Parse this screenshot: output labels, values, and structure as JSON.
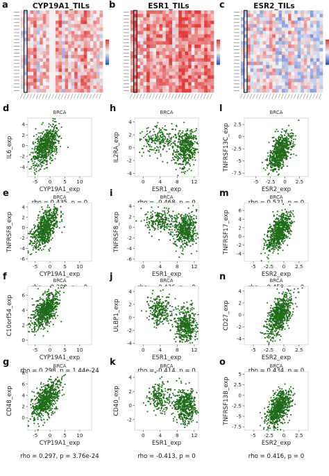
{
  "heatmaps": [
    {
      "label": "a",
      "title": "CYP19A1_TILs"
    },
    {
      "label": "b",
      "title": "ESR1_TILs"
    },
    {
      "label": "c",
      "title": "ESR2_TILs"
    }
  ],
  "colors": {
    "points": "#1f6b1a",
    "heat_high": "#e23c3c",
    "heat_low": "#2d55c8",
    "heat_mid": "#f4f4f4"
  },
  "chart_data": [
    {
      "type": "scatter",
      "panel": "d",
      "title": "BRCA",
      "xlabel": "CYP19A1_exp",
      "ylabel": "IL6_exp",
      "stats": "rho = 0.435, p = 0",
      "xlim": [
        -7.5,
        14
      ],
      "ylim": [
        -5.8,
        5.2
      ],
      "xticks": [
        -5,
        0,
        5,
        10
      ],
      "yticks": [
        -4,
        -2,
        0,
        2,
        4
      ],
      "center": [
        -1.5,
        0
      ],
      "spread": [
        2.2,
        1.9
      ],
      "pattern": "linear",
      "n": 700
    },
    {
      "type": "scatter",
      "panel": "e",
      "title": "BRCA",
      "xlabel": "CYP19A1_exp",
      "ylabel": "TNFRSF8_exp",
      "stats": "rho = 0.309, p = 0",
      "xlim": [
        -7.5,
        14
      ],
      "ylim": [
        -6.5,
        4.8
      ],
      "xticks": [
        -5,
        0,
        5,
        10
      ],
      "yticks": [
        -6,
        -4,
        -2,
        0,
        2,
        4
      ],
      "center": [
        -1.5,
        0
      ],
      "spread": [
        2.2,
        1.9
      ],
      "pattern": "linear",
      "n": 700
    },
    {
      "type": "scatter",
      "panel": "f",
      "title": "BRCA",
      "xlabel": "CYP19A1_exp",
      "ylabel": "C10orf54_exp",
      "stats": "rho = 0.298, p = 1.44e-24",
      "xlim": [
        -7.5,
        14
      ],
      "ylim": [
        -0.6,
        7.2
      ],
      "xticks": [
        -5,
        0,
        5,
        10
      ],
      "yticks": [
        0,
        2,
        4,
        6
      ],
      "center": [
        -1.5,
        4
      ],
      "spread": [
        2.2,
        1.2
      ],
      "pattern": "linear",
      "n": 700
    },
    {
      "type": "scatter",
      "panel": "g",
      "title": "BRCA",
      "xlabel": "CYP19A1_exp",
      "ylabel": "CD48_exp",
      "stats": "rho = 0.297, p = 3.76e-24",
      "xlim": [
        -7.5,
        14
      ],
      "ylim": [
        -2.2,
        8.2
      ],
      "xticks": [
        -5,
        0,
        5,
        10
      ],
      "yticks": [
        0,
        2,
        4,
        6,
        8
      ],
      "center": [
        -1.5,
        3.2
      ],
      "spread": [
        2.2,
        1.7
      ],
      "pattern": "linear",
      "n": 700
    },
    {
      "type": "scatter",
      "panel": "h",
      "title": "BRCA",
      "xlabel": "ESR1_exp",
      "ylabel": "IL2RA_exp",
      "stats": "rho = -0.468, p = 0",
      "xlim": [
        -2,
        13
      ],
      "ylim": [
        -4.5,
        4.6
      ],
      "xticks": [
        0,
        4,
        8,
        12
      ],
      "yticks": [
        -4,
        -2,
        0,
        2,
        4
      ],
      "center": [
        10,
        0
      ],
      "spread": [
        1.3,
        1.5
      ],
      "pattern": "bimodal",
      "left": [
        4,
        2.5
      ],
      "n": 700
    },
    {
      "type": "scatter",
      "panel": "i",
      "title": "BRCA",
      "xlabel": "ESR1_exp",
      "ylabel": "TNFRSF8_exp",
      "stats": "rho = -0.436, p = 0",
      "xlim": [
        -2,
        13
      ],
      "ylim": [
        -6.4,
        4.6
      ],
      "xticks": [
        0,
        4,
        8,
        12
      ],
      "yticks": [
        -6,
        -4,
        -2,
        0,
        2,
        4
      ],
      "center": [
        10,
        -0.5
      ],
      "spread": [
        1.3,
        1.6
      ],
      "pattern": "bimodal",
      "left": [
        4,
        1.8
      ],
      "n": 700
    },
    {
      "type": "scatter",
      "panel": "j",
      "title": "BRCA",
      "xlabel": "ESR1_exp",
      "ylabel": "ULBP1_exp",
      "stats": "rho = -0.414, p = 0",
      "xlim": [
        -2,
        13
      ],
      "ylim": [
        -4.2,
        4.8
      ],
      "xticks": [
        0,
        4,
        8,
        12
      ],
      "yticks": [
        -4,
        -2,
        0,
        2,
        4
      ],
      "center": [
        10,
        -1.2
      ],
      "spread": [
        1.3,
        1.3
      ],
      "pattern": "bimodal",
      "left": [
        4,
        1.5
      ],
      "n": 700
    },
    {
      "type": "scatter",
      "panel": "k",
      "title": "BRCA",
      "xlabel": "ESR1_exp",
      "ylabel": "CD40_exp",
      "stats": "rho = -0.413, p = 0",
      "xlim": [
        -2,
        13
      ],
      "ylim": [
        -3.5,
        4.8
      ],
      "xticks": [
        0,
        4,
        8,
        12
      ],
      "yticks": [
        -2,
        0,
        2,
        4
      ],
      "center": [
        10,
        0
      ],
      "spread": [
        1.3,
        1.2
      ],
      "pattern": "bimodal",
      "left": [
        4,
        1.5
      ],
      "n": 700
    },
    {
      "type": "scatter",
      "panel": "l",
      "title": "BRCA",
      "xlabel": "ESR2_exp",
      "ylabel": "TNFRSF13C_exp",
      "stats": "rho = 0.521, p = 0",
      "xlim": [
        -7,
        4
      ],
      "ylim": [
        -8.2,
        3.8
      ],
      "xticks": [
        -5,
        -2.5,
        0,
        2.5
      ],
      "yticks": [
        -7.5,
        -5,
        -2.5,
        0,
        2.5
      ],
      "center": [
        -0.8,
        -3
      ],
      "spread": [
        1.0,
        1.9
      ],
      "pattern": "linear",
      "n": 700
    },
    {
      "type": "scatter",
      "panel": "m",
      "title": "BRCA",
      "xlabel": "ESR2_exp",
      "ylabel": "TNFRSF17_exp",
      "stats": "rho = 0.459, p = 0",
      "xlim": [
        -6.5,
        4
      ],
      "ylim": [
        -5.8,
        7.8
      ],
      "xticks": [
        -5,
        -2.5,
        0,
        2.5
      ],
      "yticks": [
        -4,
        -2,
        0,
        2,
        4,
        6
      ],
      "center": [
        -0.8,
        1
      ],
      "spread": [
        1.0,
        2.2
      ],
      "pattern": "linear",
      "n": 700
    },
    {
      "type": "scatter",
      "panel": "n",
      "title": "BRCA",
      "xlabel": "ESR2_exp",
      "ylabel": "CD27_exp",
      "stats": "rho = 0.434, p = 0",
      "xlim": [
        -6.5,
        4
      ],
      "ylim": [
        -5,
        4.8
      ],
      "xticks": [
        -5,
        -2.5,
        0,
        2.5
      ],
      "yticks": [
        -4,
        -2,
        0,
        2,
        4
      ],
      "center": [
        -0.8,
        0
      ],
      "spread": [
        1.0,
        1.8
      ],
      "pattern": "linear",
      "n": 700
    },
    {
      "type": "scatter",
      "panel": "o",
      "title": "BRCA",
      "xlabel": "ESR2_exp",
      "ylabel": "TNFRSF13B_exp",
      "stats": "rho = 0.416, p = 0",
      "xlim": [
        -6.5,
        4
      ],
      "ylim": [
        -8.3,
        5.6
      ],
      "xticks": [
        -5,
        -2.5,
        0,
        2.5
      ],
      "yticks": [
        -7.5,
        -5,
        -2.5,
        0,
        2.5,
        5
      ],
      "center": [
        -0.8,
        -3
      ],
      "spread": [
        1.0,
        2.1
      ],
      "pattern": "linear",
      "n": 700
    }
  ]
}
